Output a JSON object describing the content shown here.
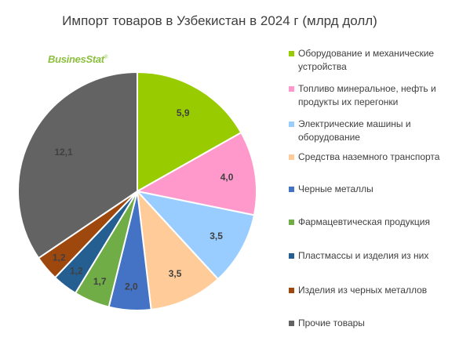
{
  "title": "Импорт товаров в Узбекистан в 2024 г (млрд долл)",
  "logo": {
    "text": "BusinesStat",
    "mark": "®"
  },
  "chart_data": {
    "type": "pie",
    "categories": [
      "Оборудование  и механические устройства",
      "Топливо минеральное, нефть и продукты  их перегонки",
      "Электрические машины и оборудование",
      "Средства наземного транспорта",
      "Черные металлы",
      "Фармацевтическая продукция",
      "Пластмассы и изделия из них",
      "Изделия из черных металлов",
      "Прочие товары"
    ],
    "values": [
      5.9,
      4.0,
      3.5,
      3.5,
      2.0,
      1.7,
      1.2,
      1.2,
      12.1
    ],
    "labels": [
      "5,9",
      "4,0",
      "3,5",
      "3,5",
      "2,0",
      "1,7",
      "1,2",
      "1,2",
      "12,1"
    ],
    "colors": [
      "#99cc00",
      "#ff99cc",
      "#99ccff",
      "#ffcc99",
      "#4472c4",
      "#70ad47",
      "#255e91",
      "#9e480e",
      "#636363"
    ],
    "start": "12 o'clock",
    "direction": "clockwise",
    "legend_position": "right"
  }
}
